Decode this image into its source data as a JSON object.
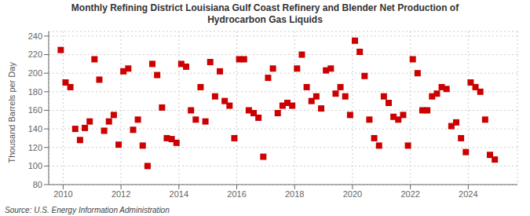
{
  "chart_data": {
    "type": "scatter",
    "title": "Monthly Refining District Louisiana Gulf Coast Refinery and Blender Net Production of\nHydrocarbon Gas Liquids",
    "ylabel": "Thousand Barrels per Day",
    "annotations": [
      "Source: U.S. Energy Information Administration"
    ],
    "color": "#cc0000",
    "marker": "square",
    "grid": true,
    "xlim": [
      2009.5,
      2025.7
    ],
    "ylim": [
      80,
      245
    ],
    "xticks": [
      2010,
      2012,
      2014,
      2016,
      2018,
      2020,
      2022,
      2024
    ],
    "yticks": [
      80,
      100,
      120,
      140,
      160,
      180,
      200,
      220,
      240
    ],
    "x": [
      2009.917,
      2010.083,
      2010.25,
      2010.417,
      2010.583,
      2010.75,
      2010.917,
      2011.083,
      2011.25,
      2011.417,
      2011.583,
      2011.75,
      2011.917,
      2012.083,
      2012.25,
      2012.417,
      2012.583,
      2012.75,
      2012.917,
      2013.083,
      2013.25,
      2013.417,
      2013.583,
      2013.75,
      2013.917,
      2014.083,
      2014.25,
      2014.417,
      2014.583,
      2014.75,
      2014.917,
      2015.083,
      2015.25,
      2015.417,
      2015.583,
      2015.75,
      2015.917,
      2016.083,
      2016.25,
      2016.417,
      2016.583,
      2016.75,
      2016.917,
      2017.083,
      2017.25,
      2017.417,
      2017.583,
      2017.75,
      2017.917,
      2018.083,
      2018.25,
      2018.417,
      2018.583,
      2018.75,
      2018.917,
      2019.083,
      2019.25,
      2019.417,
      2019.583,
      2019.75,
      2019.917,
      2020.083,
      2020.25,
      2020.417,
      2020.583,
      2020.75,
      2020.917,
      2021.083,
      2021.25,
      2021.417,
      2021.583,
      2021.75,
      2021.917,
      2022.083,
      2022.25,
      2022.417,
      2022.583,
      2022.75,
      2022.917,
      2023.083,
      2023.25,
      2023.417,
      2023.583,
      2023.75,
      2023.917,
      2024.083,
      2024.25,
      2024.417,
      2024.583,
      2024.75,
      2024.917
    ],
    "values": [
      225,
      190,
      185,
      140,
      128,
      141,
      148,
      215,
      193,
      138,
      148,
      155,
      123,
      202,
      205,
      139,
      150,
      122,
      100,
      210,
      198,
      163,
      130,
      129,
      125,
      210,
      207,
      160,
      150,
      185,
      148,
      212,
      175,
      202,
      170,
      165,
      130,
      215,
      215,
      160,
      157,
      152,
      110,
      195,
      205,
      157,
      165,
      168,
      165,
      205,
      220,
      185,
      170,
      175,
      162,
      203,
      205,
      178,
      185,
      175,
      155,
      235,
      223,
      197,
      150,
      130,
      122,
      175,
      168,
      153,
      150,
      155,
      122,
      215,
      200,
      160,
      160,
      175,
      178,
      185,
      183,
      143,
      147,
      130,
      115,
      190,
      185,
      180,
      150,
      112,
      107
    ]
  }
}
